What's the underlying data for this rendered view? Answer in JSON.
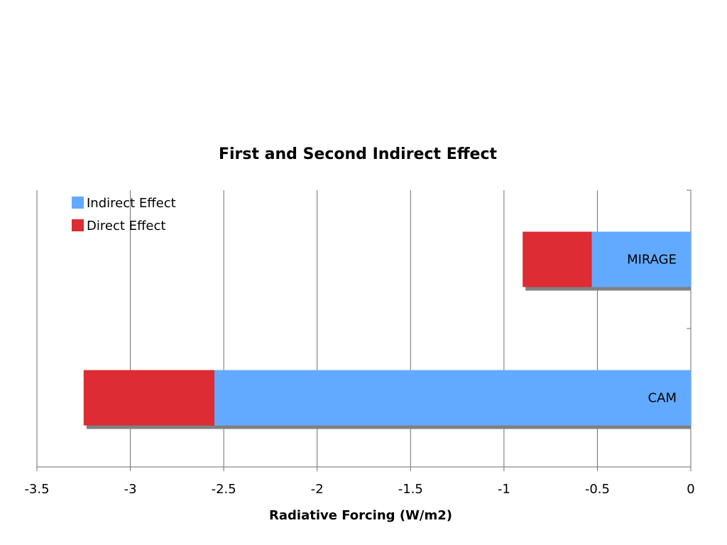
{
  "chart_data": {
    "type": "bar",
    "orientation": "horizontal",
    "stacked": true,
    "title": "First and Second Indirect Effect",
    "xlabel": "Radiative Forcing (W/m2)",
    "ylabel": "",
    "xlim": [
      -3.5,
      0
    ],
    "xticks": [
      "-3.5",
      "-3",
      "-2.5",
      "-2",
      "-1.5",
      "-1",
      "-0.5",
      "0"
    ],
    "categories": [
      "MIRAGE",
      "CAM"
    ],
    "series": [
      {
        "name": "Indirect Effect",
        "color": "#62aaff",
        "values": [
          -0.53,
          -2.55
        ]
      },
      {
        "name": "Direct Effect",
        "color": "#dd2c33",
        "values": [
          -0.37,
          -0.7
        ]
      }
    ],
    "grid": "vertical",
    "legend": "top-left",
    "shadow_color": "#808080"
  }
}
